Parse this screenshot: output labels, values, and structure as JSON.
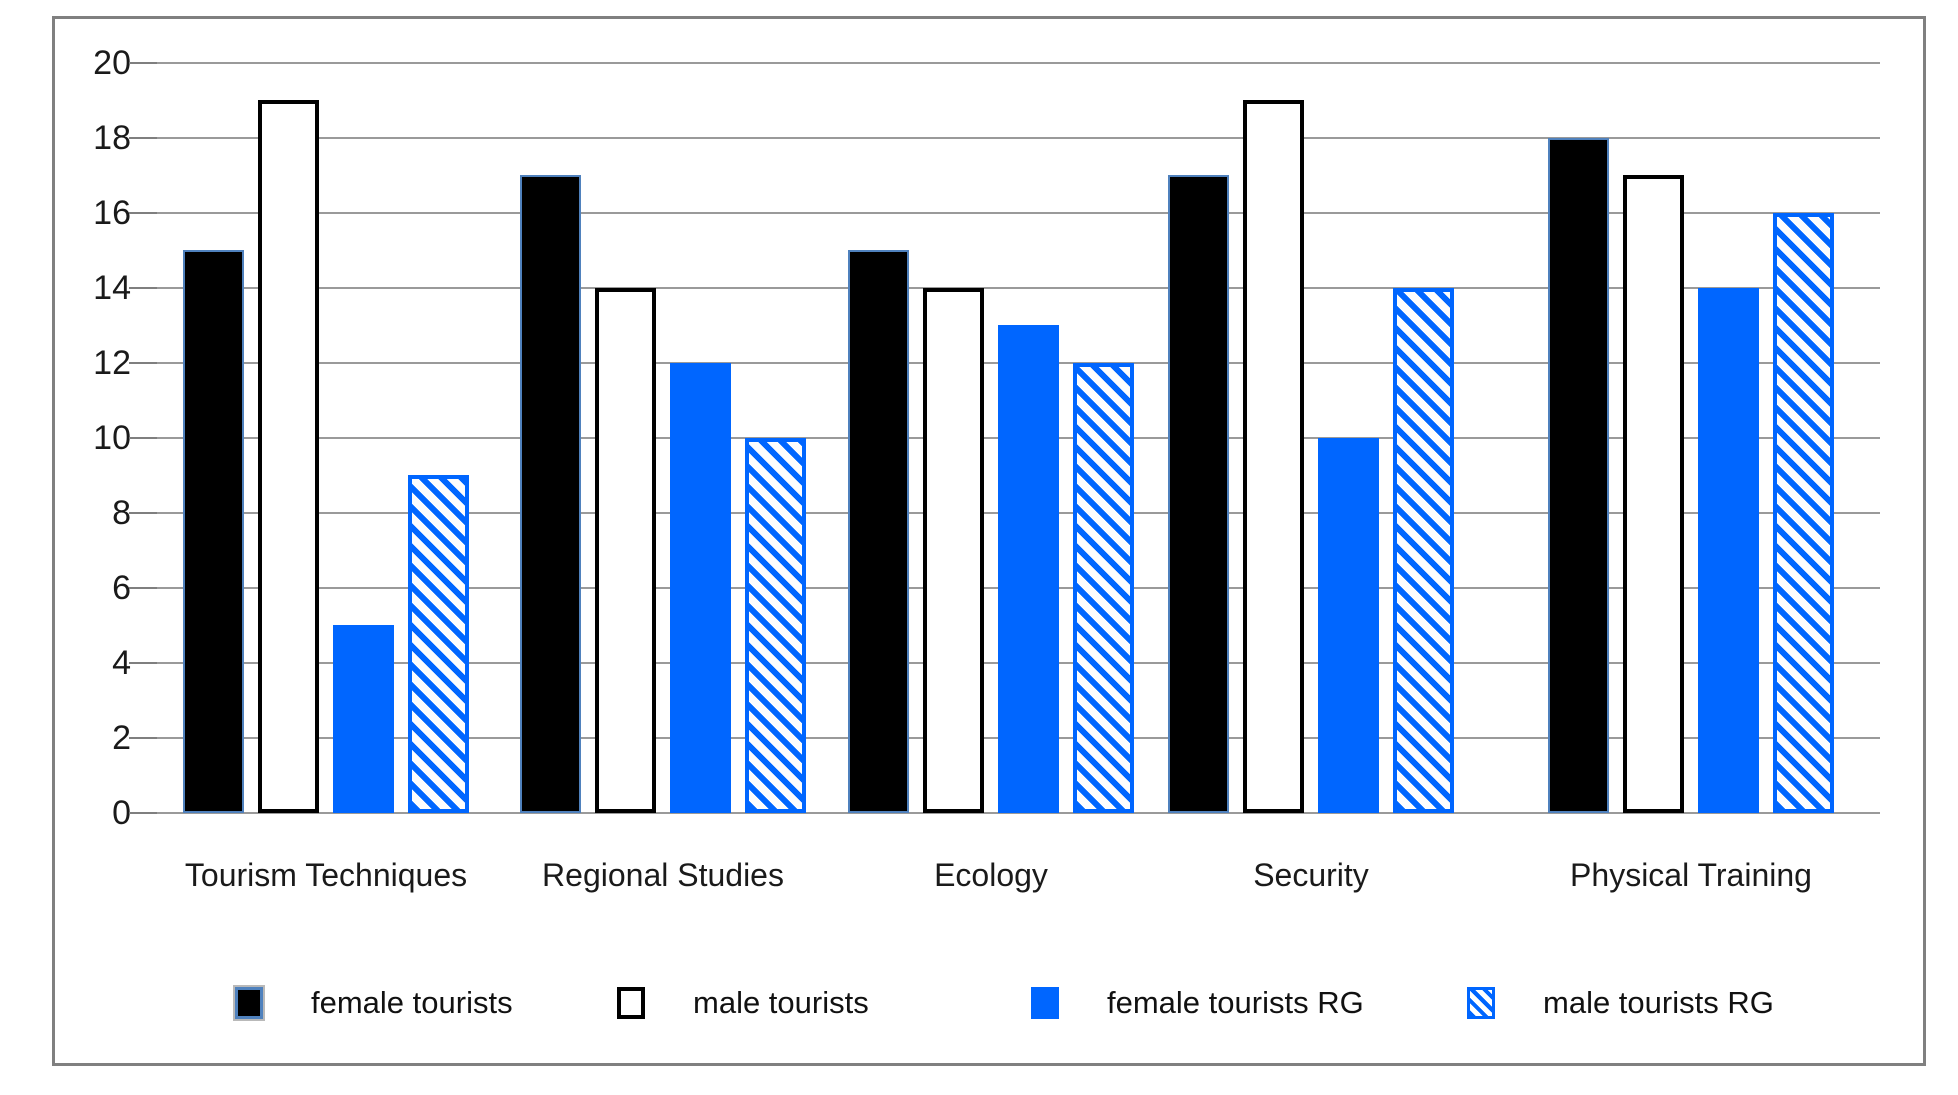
{
  "chart_data": {
    "type": "bar",
    "title": "",
    "xlabel": "",
    "ylabel": "",
    "categories": [
      "Tourism Techniques",
      "Regional Studies",
      "Ecology",
      "Security",
      "Physical Training"
    ],
    "series": [
      {
        "name": "female tourists",
        "style": "solid-black",
        "values": [
          15,
          17,
          15,
          17,
          18
        ]
      },
      {
        "name": "male tourists",
        "style": "outline-white",
        "values": [
          19,
          14,
          14,
          19,
          17
        ]
      },
      {
        "name": "female tourists RG",
        "style": "solid-blue",
        "values": [
          5,
          12,
          13,
          10,
          14
        ]
      },
      {
        "name": "male tourists RG",
        "style": "hatched-blue",
        "values": [
          9,
          10,
          12,
          14,
          16
        ]
      }
    ],
    "ylim": [
      0,
      20
    ],
    "y_ticks": [
      0,
      2,
      4,
      6,
      8,
      10,
      12,
      14,
      16,
      18,
      20
    ],
    "grid": true,
    "legend_position": "bottom",
    "colors": {
      "blue": "#0066FF",
      "black_bar_border": "#4F81BD",
      "bar_black": "#000000",
      "bar_white": "#FFFFFF",
      "gridline": "#9A9A9A",
      "tick": "#7F7F7F",
      "frame_border": "#808080",
      "text": "#1A1A1A"
    }
  }
}
